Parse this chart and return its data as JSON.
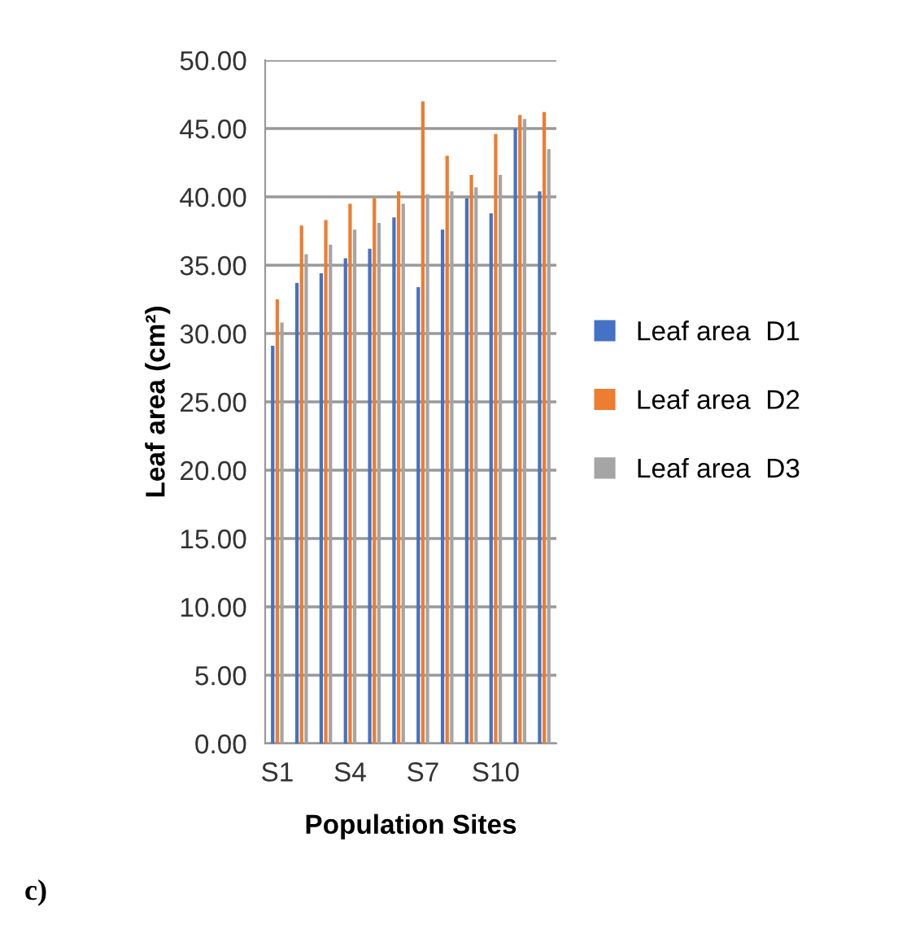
{
  "chart_data": {
    "type": "bar",
    "xlabel": "Population Sites",
    "ylabel": "Leaf area (cm²)",
    "categories": [
      "S1",
      null,
      null,
      "S4",
      null,
      null,
      "S7",
      null,
      null,
      "S10",
      null,
      null
    ],
    "series": [
      {
        "name": "Leaf area  D1",
        "color": "#4472c4",
        "values": [
          29.1,
          33.7,
          34.4,
          35.5,
          36.2,
          38.5,
          33.4,
          37.6,
          39.9,
          38.8,
          45.0,
          40.4
        ]
      },
      {
        "name": "Leaf area  D2",
        "color": "#ed7d31",
        "values": [
          32.5,
          37.9,
          38.3,
          39.5,
          39.9,
          40.4,
          47.0,
          43.0,
          41.6,
          44.6,
          46.0,
          46.2
        ]
      },
      {
        "name": "Leaf area  D3",
        "color": "#a5a5a5",
        "values": [
          30.8,
          35.8,
          36.5,
          37.6,
          38.1,
          39.5,
          40.2,
          40.4,
          40.7,
          41.6,
          45.7,
          43.5
        ]
      }
    ],
    "ylim": [
      0,
      50
    ],
    "yticks": [
      {
        "value": 0,
        "label": "0.00"
      },
      {
        "value": 5,
        "label": "5.00"
      },
      {
        "value": 10,
        "label": "10.00"
      },
      {
        "value": 15,
        "label": "15.00"
      },
      {
        "value": 20,
        "label": "20.00"
      },
      {
        "value": 25,
        "label": "25.00"
      },
      {
        "value": 30,
        "label": "30.00"
      },
      {
        "value": 35,
        "label": "35.00"
      },
      {
        "value": 40,
        "label": "40.00"
      },
      {
        "value": 45,
        "label": "45.00"
      },
      {
        "value": 50,
        "label": "50.00"
      }
    ],
    "grid": "y",
    "legend": "right",
    "annotations": [
      "c)"
    ]
  }
}
